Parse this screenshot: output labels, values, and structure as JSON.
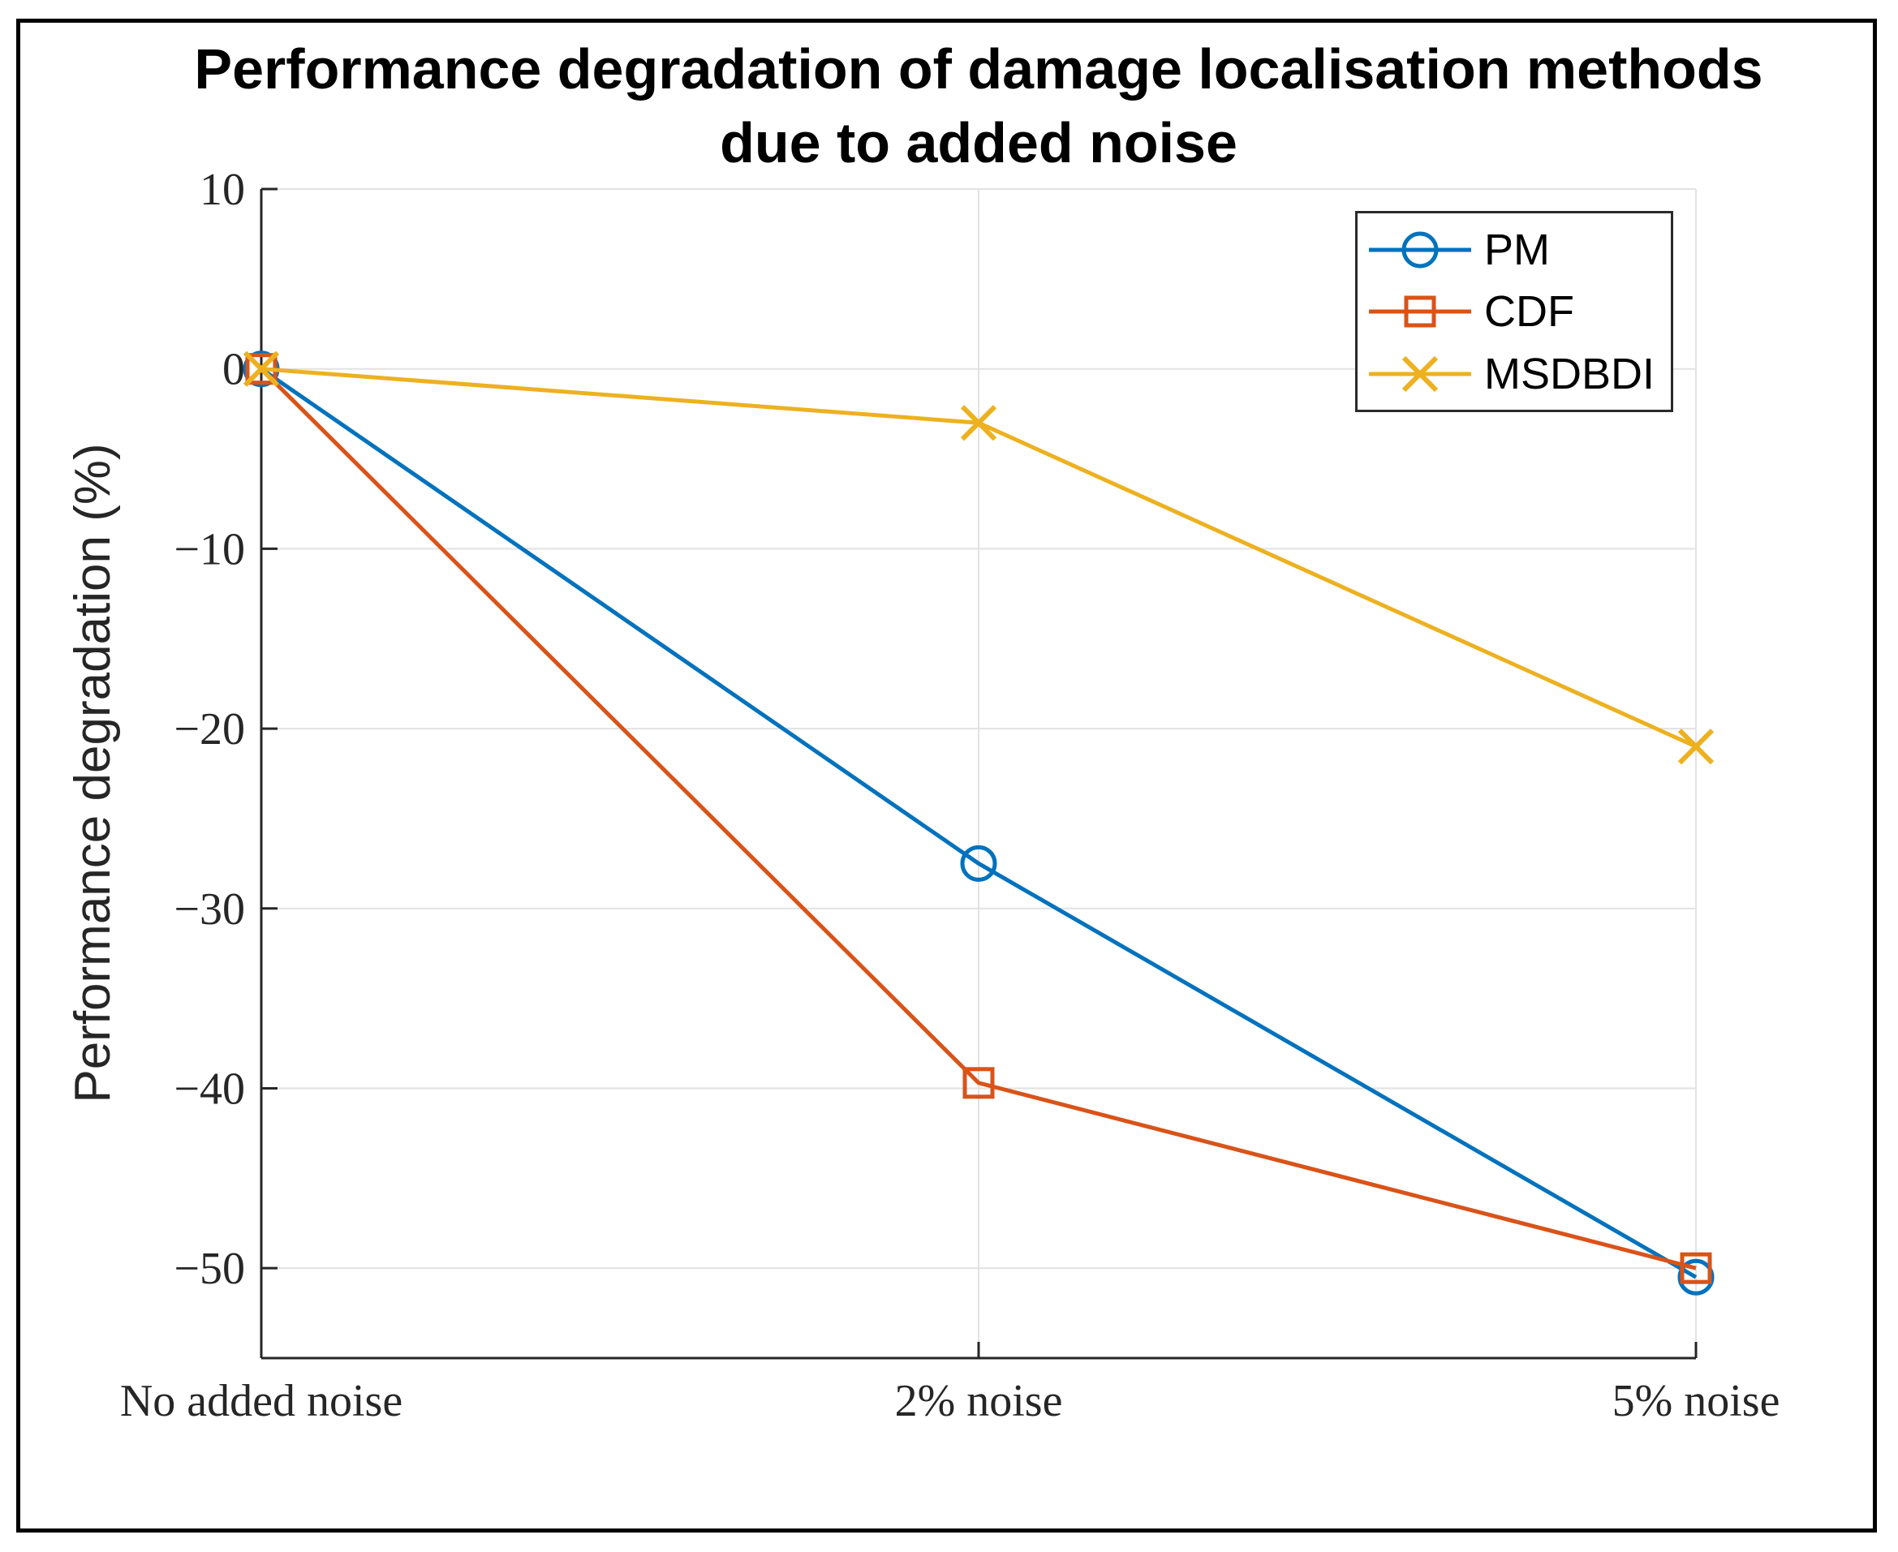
{
  "figure": {
    "background": "#ffffff",
    "border_color": "#000000"
  },
  "chart_data": {
    "type": "line",
    "title": "Performance degradation of damage localisation methods due to added noise",
    "title_lines": [
      "Performance degradation of damage localisation methods",
      "due to added noise"
    ],
    "ylabel": "Performance degradation (%)",
    "xlabel": "",
    "categories": [
      "No added noise",
      "2% noise",
      "5% noise"
    ],
    "series": [
      {
        "name": "PM",
        "marker": "circle",
        "color": "#0072BD",
        "values": [
          0,
          -27.5,
          -50.5
        ]
      },
      {
        "name": "CDF",
        "marker": "square",
        "color": "#D95319",
        "values": [
          0,
          -39.7,
          -50.0
        ]
      },
      {
        "name": "MSDBDI",
        "marker": "x",
        "color": "#EDB120",
        "values": [
          0,
          -3.0,
          -21.0
        ]
      }
    ],
    "ylim": [
      -55,
      10
    ],
    "yticks": [
      10,
      0,
      -10,
      -20,
      -30,
      -40,
      -50
    ],
    "ytick_labels": [
      "10",
      "0",
      "−10",
      "−20",
      "−30",
      "−40",
      "−50"
    ],
    "grid": true,
    "legend_position": "top-right",
    "axis_color": "#262626",
    "grid_color": "#e2e2e2",
    "tick_label_color": "#262626"
  }
}
